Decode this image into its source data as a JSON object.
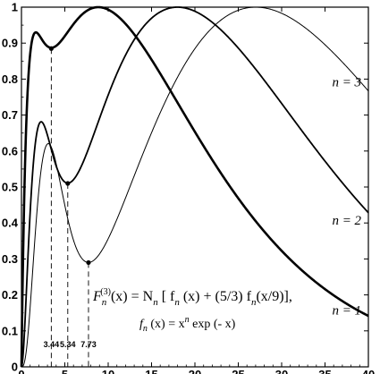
{
  "chart_data": {
    "type": "line",
    "title": "",
    "xlabel": "",
    "ylabel": "",
    "xlim": [
      0,
      40
    ],
    "ylim": [
      0,
      1
    ],
    "xticks": [
      0,
      5,
      10,
      15,
      20,
      25,
      30,
      35,
      40
    ],
    "yticks": [
      0,
      0.1,
      0.2,
      0.3,
      0.4,
      0.5,
      0.6,
      0.7,
      0.8,
      0.9,
      1
    ],
    "grid": false,
    "legend": "none",
    "formula": {
      "line1_left": "F",
      "line1_sub": "n",
      "line1_sup": "(3)",
      "line1_rest": "(x) = N",
      "line1_sub2": "n",
      "line1_tail": " [ f",
      "line1_sub3": "n",
      "line1_tail2": " (x) + (5/3) f",
      "line1_sub4": "n",
      "line1_tail3": "(x/9)],",
      "line2_left": "f",
      "line2_sub": "n",
      "line2_mid": " (x) = x",
      "line2_sup": "n",
      "line2_tail": " exp (- x)"
    },
    "series": [
      {
        "name": "n = 1",
        "n": 1,
        "stroke_width": 2.6,
        "label_x": 37.5,
        "label_y": 0.145
      },
      {
        "name": "n = 2",
        "n": 2,
        "stroke_width": 1.8,
        "label_x": 37.5,
        "label_y": 0.395
      },
      {
        "name": "n = 3",
        "n": 3,
        "stroke_width": 1.0,
        "label_x": 37.5,
        "label_y": 0.78
      }
    ],
    "minima": [
      {
        "x": 3.44,
        "y": 0.885,
        "label": "3.44"
      },
      {
        "x": 5.34,
        "y": 0.51,
        "label": "5.34"
      },
      {
        "x": 7.73,
        "y": 0.29,
        "label": "7.73"
      }
    ]
  }
}
